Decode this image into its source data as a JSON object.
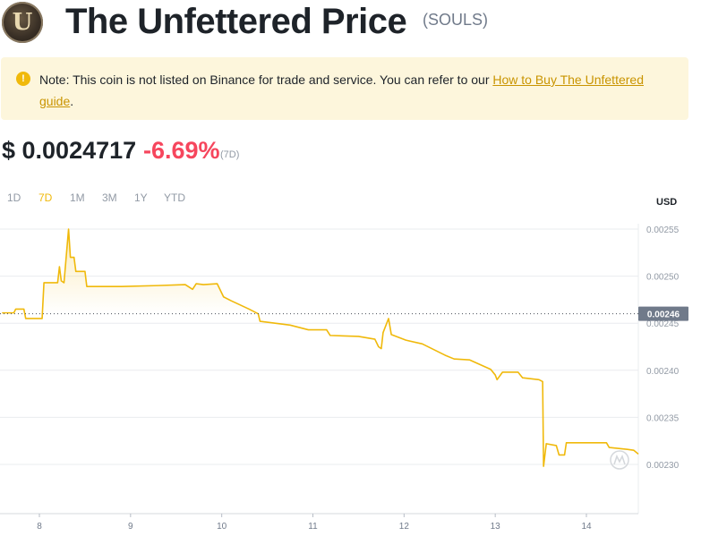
{
  "header": {
    "logo_letter": "U",
    "title": "The Unfettered Price",
    "ticker": "(SOULS)"
  },
  "notice": {
    "icon": "warning-icon",
    "text": "Note: This coin is not listed on Binance for trade and service. You can refer to our ",
    "link_text": "How to Buy The Unfettered guide",
    "suffix": "."
  },
  "price": {
    "value": "$ 0.0024717",
    "change": "-6.69%",
    "period": "(7D)"
  },
  "colors": {
    "accent": "#f0b90b",
    "negative": "#f6465d",
    "notice_bg": "#fdf6dc"
  },
  "ranges": [
    {
      "label": "1D",
      "active": false
    },
    {
      "label": "7D",
      "active": true
    },
    {
      "label": "1M",
      "active": false
    },
    {
      "label": "3M",
      "active": false
    },
    {
      "label": "1Y",
      "active": false
    },
    {
      "label": "YTD",
      "active": false
    }
  ],
  "chart_data": {
    "type": "area",
    "currency": "USD",
    "current_value": 0.00246,
    "current_label": "0.00246",
    "y_ticks": [
      "0.00255",
      "0.00250",
      "0.00245",
      "0.00240",
      "0.00235",
      "0.00230"
    ],
    "x_ticks": [
      "8",
      "9",
      "10",
      "11",
      "12",
      "13",
      "14"
    ],
    "ylim": [
      0.00229,
      0.002555
    ],
    "xlim": [
      7.59,
      14.57
    ],
    "grid": true,
    "series": [
      {
        "points": [
          [
            7.59,
            0.002461
          ],
          [
            7.72,
            0.002461
          ],
          [
            7.74,
            0.002465
          ],
          [
            7.83,
            0.002465
          ],
          [
            7.85,
            0.002455
          ],
          [
            8.03,
            0.002455
          ],
          [
            8.05,
            0.002493
          ],
          [
            8.2,
            0.002493
          ],
          [
            8.22,
            0.00251
          ],
          [
            8.24,
            0.002495
          ],
          [
            8.27,
            0.002493
          ],
          [
            8.32,
            0.00255
          ],
          [
            8.34,
            0.00252
          ],
          [
            8.38,
            0.00252
          ],
          [
            8.4,
            0.002505
          ],
          [
            8.5,
            0.002505
          ],
          [
            8.52,
            0.002489
          ],
          [
            8.9,
            0.002489
          ],
          [
            9.3,
            0.00249
          ],
          [
            9.6,
            0.002491
          ],
          [
            9.68,
            0.002486
          ],
          [
            9.72,
            0.002492
          ],
          [
            9.8,
            0.002491
          ],
          [
            9.95,
            0.002492
          ],
          [
            10.02,
            0.002478
          ],
          [
            10.1,
            0.002474
          ],
          [
            10.3,
            0.002465
          ],
          [
            10.4,
            0.00246
          ],
          [
            10.42,
            0.002452
          ],
          [
            10.75,
            0.002448
          ],
          [
            10.95,
            0.002443
          ],
          [
            11.15,
            0.002443
          ],
          [
            11.19,
            0.002437
          ],
          [
            11.5,
            0.002436
          ],
          [
            11.68,
            0.002433
          ],
          [
            11.72,
            0.002425
          ],
          [
            11.75,
            0.002423
          ],
          [
            11.77,
            0.00244
          ],
          [
            11.83,
            0.002455
          ],
          [
            11.86,
            0.002438
          ],
          [
            12.02,
            0.002432
          ],
          [
            12.2,
            0.002428
          ],
          [
            12.45,
            0.002416
          ],
          [
            12.55,
            0.002412
          ],
          [
            12.72,
            0.002411
          ],
          [
            12.95,
            0.002401
          ],
          [
            13.0,
            0.002395
          ],
          [
            13.02,
            0.00239
          ],
          [
            13.08,
            0.002398
          ],
          [
            13.25,
            0.002398
          ],
          [
            13.3,
            0.002392
          ],
          [
            13.48,
            0.00239
          ],
          [
            13.52,
            0.002388
          ],
          [
            13.53,
            0.002298
          ],
          [
            13.56,
            0.002322
          ],
          [
            13.67,
            0.00232
          ],
          [
            13.7,
            0.00231
          ],
          [
            13.76,
            0.00231
          ],
          [
            13.78,
            0.002323
          ],
          [
            14.22,
            0.002323
          ],
          [
            14.25,
            0.002318
          ],
          [
            14.45,
            0.002316
          ],
          [
            14.52,
            0.002315
          ],
          [
            14.57,
            0.002311
          ]
        ]
      }
    ]
  }
}
